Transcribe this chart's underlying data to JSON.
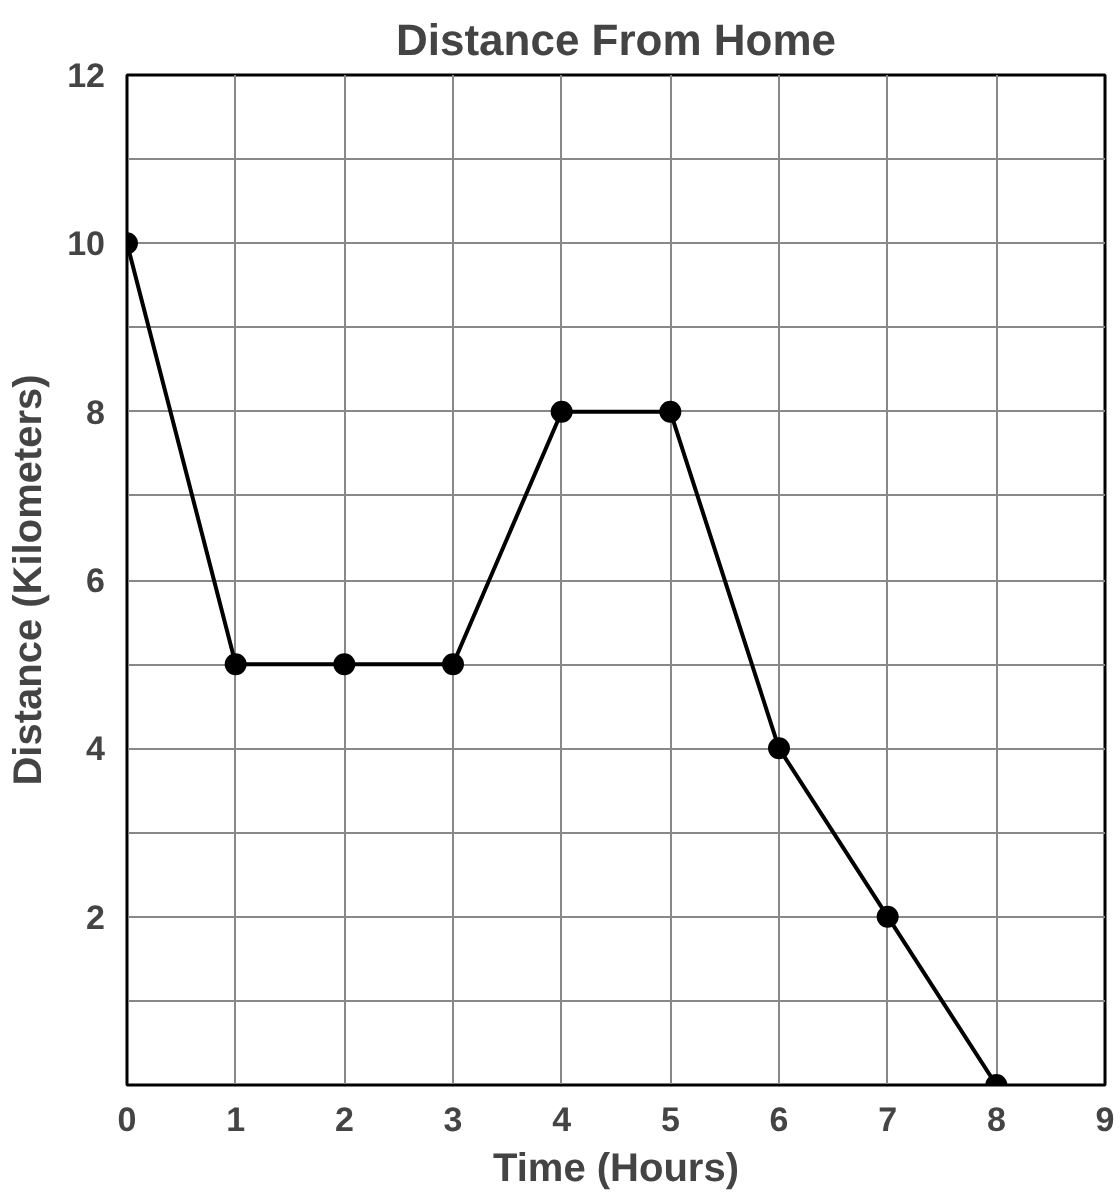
{
  "chart_data": {
    "type": "line",
    "title": "Distance From Home",
    "xlabel": "Time (Hours)",
    "ylabel": "Distance (Kilometers)",
    "x": [
      0,
      1,
      2,
      3,
      4,
      5,
      6,
      7,
      8
    ],
    "values": [
      10,
      5,
      5,
      5,
      8,
      8,
      4,
      2,
      0
    ],
    "color": "#000000",
    "marker": "circle",
    "line_style": "solid",
    "xlim": [
      0,
      9
    ],
    "xticks": [
      0,
      1,
      2,
      3,
      4,
      5,
      6,
      7,
      8,
      9
    ],
    "ylim": [
      0,
      12
    ],
    "yticks": [
      {
        "value": 0,
        "label": null
      },
      {
        "value": 1,
        "label": null
      },
      2,
      {
        "value": 3,
        "label": null
      },
      4,
      {
        "value": 5,
        "label": null
      },
      6,
      {
        "value": 7,
        "label": null
      },
      8,
      {
        "value": 9,
        "label": null
      },
      10,
      {
        "value": 11,
        "label": null
      },
      12
    ],
    "grid": true
  }
}
